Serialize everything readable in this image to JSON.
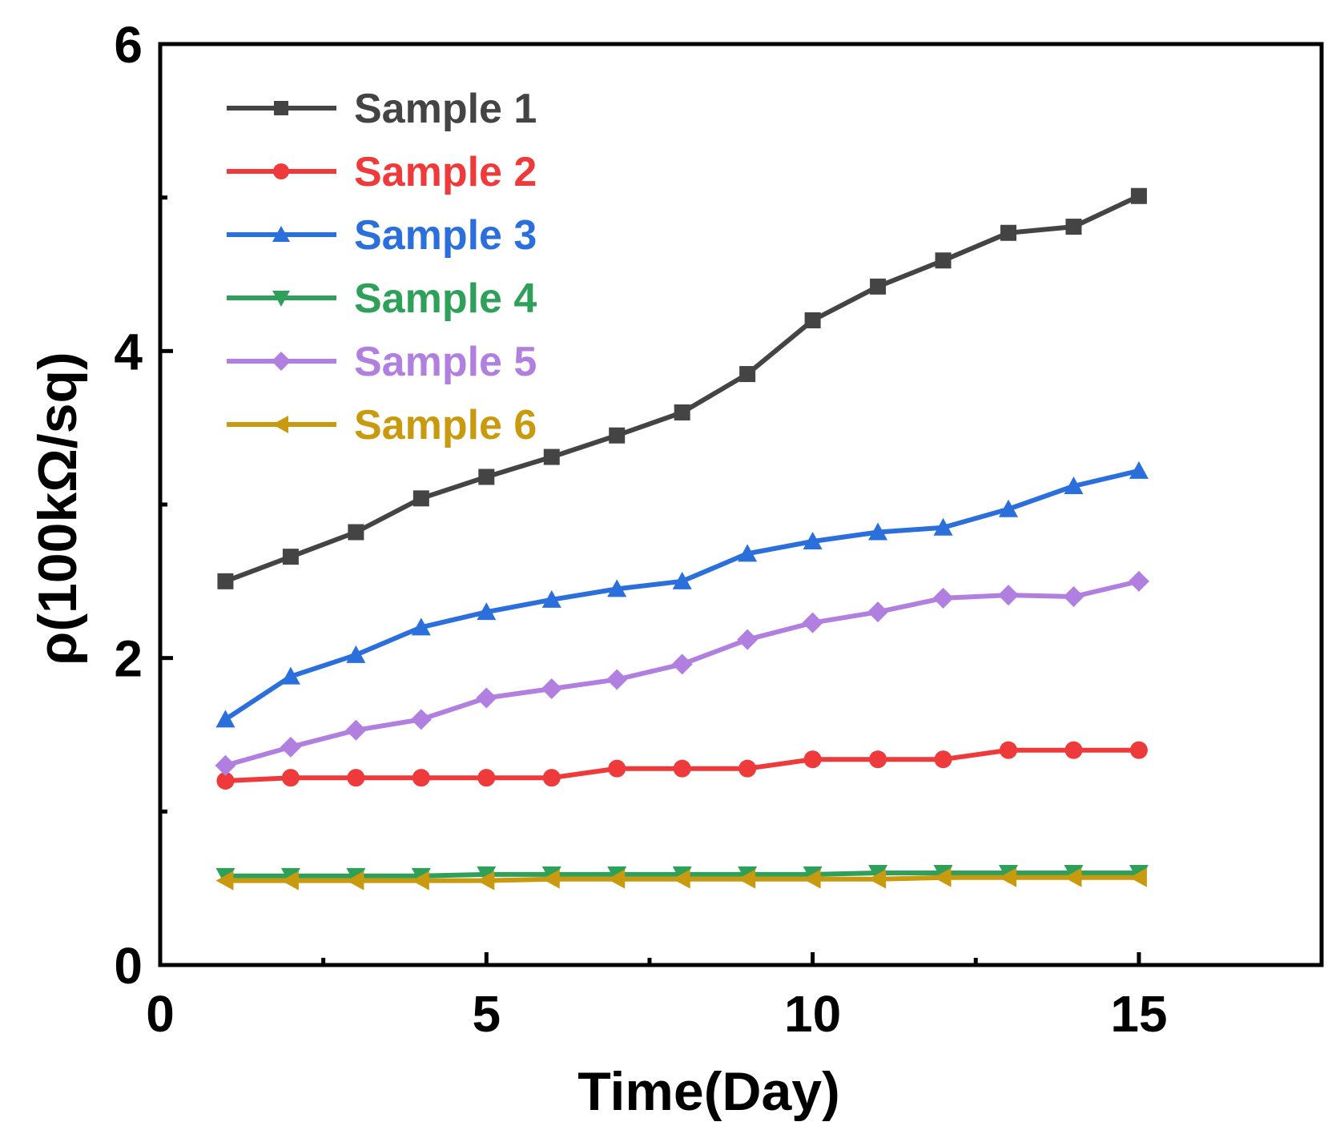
{
  "chart_data": {
    "type": "line",
    "title": "",
    "xlabel": "Time(Day)",
    "ylabel": "ρ(100kΩ/sq)",
    "xlim": [
      0,
      17.8
    ],
    "ylim": [
      0,
      6
    ],
    "xticks": [
      0,
      5,
      10,
      15
    ],
    "xtick_labels": [
      "0",
      "5",
      "10",
      "15"
    ],
    "xminor": [
      2.5,
      7.5,
      12.5
    ],
    "yticks": [
      0,
      2,
      4,
      6
    ],
    "ytick_labels": [
      "0",
      "2",
      "4",
      "6"
    ],
    "yminor": [
      1,
      3,
      5
    ],
    "grid": false,
    "legend_position": "top-left",
    "x": [
      1,
      2,
      3,
      4,
      5,
      6,
      7,
      8,
      9,
      10,
      11,
      12,
      13,
      14,
      15
    ],
    "series": [
      {
        "name": "Sample 1",
        "color": "#444444",
        "marker": "square",
        "values": [
          2.5,
          2.66,
          2.82,
          3.04,
          3.18,
          3.31,
          3.45,
          3.6,
          3.85,
          4.2,
          4.42,
          4.59,
          4.77,
          4.81,
          5.01
        ]
      },
      {
        "name": "Sample 2",
        "color": "#ee3a3a",
        "marker": "circle",
        "values": [
          1.2,
          1.22,
          1.22,
          1.22,
          1.22,
          1.22,
          1.28,
          1.28,
          1.28,
          1.34,
          1.34,
          1.34,
          1.4,
          1.4,
          1.4
        ]
      },
      {
        "name": "Sample 3",
        "color": "#2a6fdb",
        "marker": "triangle-up",
        "values": [
          1.6,
          1.88,
          2.02,
          2.2,
          2.3,
          2.38,
          2.45,
          2.5,
          2.68,
          2.76,
          2.82,
          2.85,
          2.97,
          3.12,
          3.22
        ]
      },
      {
        "name": "Sample 4",
        "color": "#2ea05a",
        "marker": "triangle-down",
        "values": [
          0.58,
          0.58,
          0.58,
          0.58,
          0.59,
          0.59,
          0.59,
          0.59,
          0.59,
          0.59,
          0.6,
          0.6,
          0.6,
          0.6,
          0.6
        ]
      },
      {
        "name": "Sample 5",
        "color": "#b07fe0",
        "marker": "diamond",
        "values": [
          1.3,
          1.42,
          1.53,
          1.6,
          1.74,
          1.8,
          1.86,
          1.96,
          2.12,
          2.23,
          2.3,
          2.39,
          2.41,
          2.4,
          2.5
        ]
      },
      {
        "name": "Sample 6",
        "color": "#c99a0e",
        "marker": "triangle-left",
        "values": [
          0.55,
          0.55,
          0.55,
          0.55,
          0.55,
          0.56,
          0.56,
          0.56,
          0.56,
          0.56,
          0.56,
          0.57,
          0.57,
          0.57,
          0.57
        ]
      }
    ]
  }
}
